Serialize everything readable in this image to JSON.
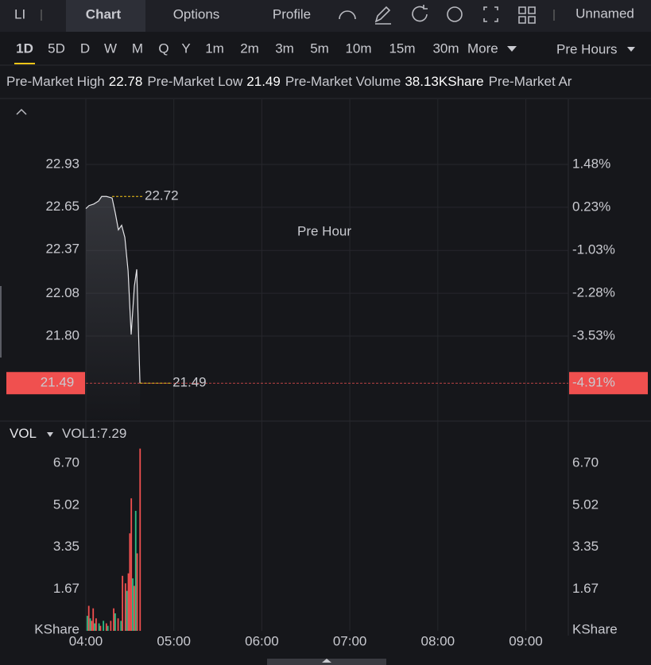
{
  "toolbar": {
    "symbol": "LI",
    "tabs": [
      "Chart",
      "Options",
      "Profile"
    ],
    "layout": "Unnamed"
  },
  "periods": {
    "items": [
      "1D",
      "5D",
      "D",
      "W",
      "M",
      "Q",
      "Y",
      "1m",
      "2m",
      "3m",
      "5m",
      "10m",
      "15m",
      "30m"
    ],
    "more": "More",
    "session": "Pre Hours"
  },
  "summary": [
    {
      "label": "Pre-Market High",
      "value": 22.78
    },
    {
      "label": "Pre-Market Low",
      "value": 21.49
    },
    {
      "label": "Pre-Market Volume",
      "value": "38.13KShare"
    },
    {
      "label": "Pre-Market Ar"
    }
  ],
  "chart_data": [
    {
      "type": "line",
      "watermark": "Pre Hour",
      "color": "#e4e4e8",
      "x": [
        0,
        2.2,
        5.4,
        8.7,
        10.8,
        14.1,
        17.9,
        20.1,
        22.2,
        24.4,
        26.6,
        28.8,
        30.9,
        33.1,
        34.7,
        36.9
      ],
      "values": [
        22.64,
        22.66,
        22.67,
        22.69,
        22.72,
        22.72,
        22.71,
        22.61,
        22.5,
        22.53,
        22.45,
        22.23,
        21.81,
        22.13,
        22.24,
        21.49
      ],
      "xlim": [
        0,
        329
      ],
      "xgrid": [
        0,
        60,
        120,
        180,
        240,
        300
      ],
      "ylim": [
        21.24,
        23.36
      ],
      "yticks": [
        22.93,
        22.65,
        22.37,
        22.08,
        {
          "value": 21.8,
          "label": "21.80"
        }
      ],
      "y2lim": [
        -6.01,
        3.38
      ],
      "y2ticks": [
        {
          "value": 1.48,
          "label": "1.48%"
        },
        {
          "value": 0.23,
          "label": "0.23%"
        },
        {
          "value": -1.03,
          "label": "-1.03%"
        },
        {
          "value": -2.28,
          "label": "-2.28%"
        },
        {
          "value": -3.53,
          "label": "-3.53%"
        }
      ],
      "up_color": "#2dbd85",
      "down_color": "#f0504f",
      "marker_color": "#f5c518",
      "annotations": [
        {
          "x": 17.9,
          "value": 22.72
        },
        {
          "x": 36.9,
          "value": 21.49
        }
      ],
      "current": {
        "value": 21.49,
        "change": {
          "value": -4.91,
          "label": "-4.91%"
        }
      }
    },
    {
      "type": "bar",
      "indicator": "VOL",
      "legend_label": "VOL1:",
      "legend_value": 7.29,
      "unit": "KShare",
      "x": [
        1,
        2,
        3,
        4,
        5,
        6,
        7,
        9,
        10,
        12,
        14,
        15,
        17,
        19,
        20,
        22,
        24,
        25,
        27,
        28,
        29,
        30,
        31,
        32,
        33,
        34,
        35,
        37
      ],
      "values": [
        0.6,
        1.0,
        0.5,
        0.4,
        0.9,
        0.3,
        0.5,
        0.3,
        0.2,
        0.4,
        0.3,
        0.2,
        0.4,
        0.9,
        0.7,
        0.5,
        0.4,
        2.2,
        1.9,
        1.6,
        2.3,
        3.9,
        5.3,
        2.1,
        1.8,
        4.8,
        3.1,
        7.29
      ],
      "colors": [
        "#2dbd85",
        "#f0504f",
        "#2dbd85",
        "#f0504f",
        "#f0504f",
        "#2dbd85",
        "#f0504f",
        "#2dbd85",
        "#f0504f",
        "#2dbd85",
        "#f0504f",
        "#2dbd85",
        "#f0504f",
        "#f0504f",
        "#2dbd85",
        "#f0504f",
        "#2dbd85",
        "#f0504f",
        "#f0504f",
        "#2dbd85",
        "#f0504f",
        "#f0504f",
        "#f0504f",
        "#2dbd85",
        "#f0504f",
        "#2dbd85",
        "#f0504f",
        "#f0504f"
      ],
      "xlim": [
        0,
        329
      ],
      "xticks": [
        {
          "value": 0,
          "label": "04:00"
        },
        {
          "value": 60,
          "label": "05:00"
        },
        {
          "value": 120,
          "label": "06:00"
        },
        {
          "value": 180,
          "label": "07:00"
        },
        {
          "value": 240,
          "label": "08:00"
        },
        {
          "value": 300,
          "label": "09:00"
        }
      ],
      "ylim": [
        0,
        8.39
      ],
      "yticks": [
        {
          "value": 6.7,
          "label": "6.70"
        },
        5.02,
        3.35,
        1.67
      ]
    }
  ]
}
